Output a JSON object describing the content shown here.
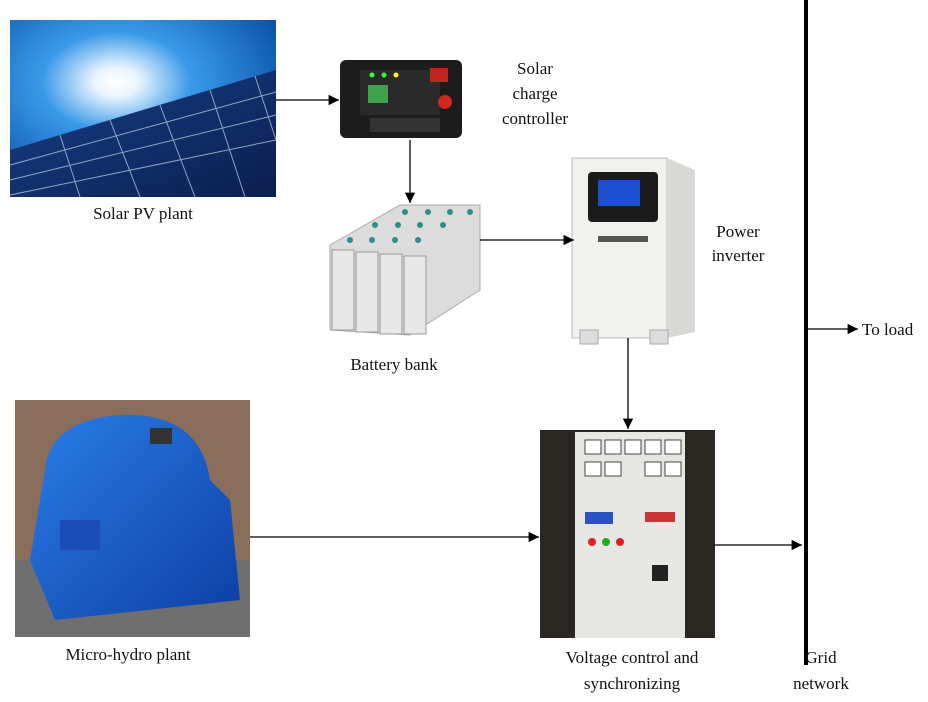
{
  "nodes": [
    {
      "label": [
        "Solar PV plant"
      ]
    },
    {
      "label": [
        "Solar",
        "charge",
        "controller"
      ]
    },
    {
      "label": [
        "Battery bank"
      ]
    },
    {
      "label": [
        "Power",
        "inverter"
      ]
    },
    {
      "label": [
        "Micro-hydro plant"
      ]
    },
    {
      "label": [
        "Voltage control and",
        "synchronizing"
      ]
    },
    {
      "label": [
        "Grid",
        "network"
      ]
    },
    {
      "label": [
        "To load"
      ]
    }
  ]
}
